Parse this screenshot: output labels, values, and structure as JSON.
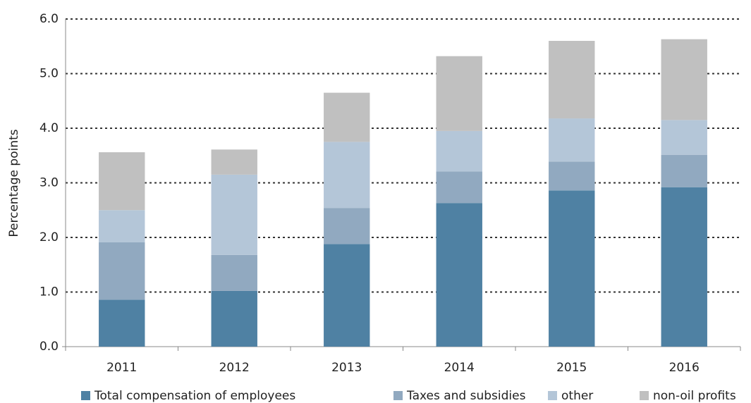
{
  "chart_data": {
    "type": "stacked_bar",
    "y_label": "Percentage points",
    "categories": [
      "2011",
      "2012",
      "2013",
      "2014",
      "2015",
      "2016"
    ],
    "series": [
      {
        "name": "Total compensation of employees",
        "color": "#4f81a3",
        "values": [
          0.86,
          1.02,
          1.88,
          2.63,
          2.86,
          2.92
        ]
      },
      {
        "name": "Taxes and subsidies",
        "color": "#91a9c0",
        "values": [
          1.05,
          0.66,
          0.66,
          0.58,
          0.53,
          0.59
        ]
      },
      {
        "name": "other",
        "color": "#b4c6d8",
        "values": [
          0.59,
          1.47,
          1.21,
          0.74,
          0.79,
          0.64
        ]
      },
      {
        "name": "non-oil profits",
        "color": "#c0c0c0",
        "values": [
          1.06,
          0.46,
          0.9,
          1.37,
          1.42,
          1.48
        ]
      }
    ],
    "ylim": [
      0,
      6
    ],
    "yticks": [
      {
        "value": 0,
        "label": "0.0"
      },
      {
        "value": 1,
        "label": "1.0"
      },
      {
        "value": 2,
        "label": "2.0"
      },
      {
        "value": 3,
        "label": "3.0"
      },
      {
        "value": 4,
        "label": "4.0"
      },
      {
        "value": 5,
        "label": "5.0"
      },
      {
        "value": 6,
        "label": "6.0"
      }
    ],
    "grid": true,
    "legend": "bottom"
  }
}
